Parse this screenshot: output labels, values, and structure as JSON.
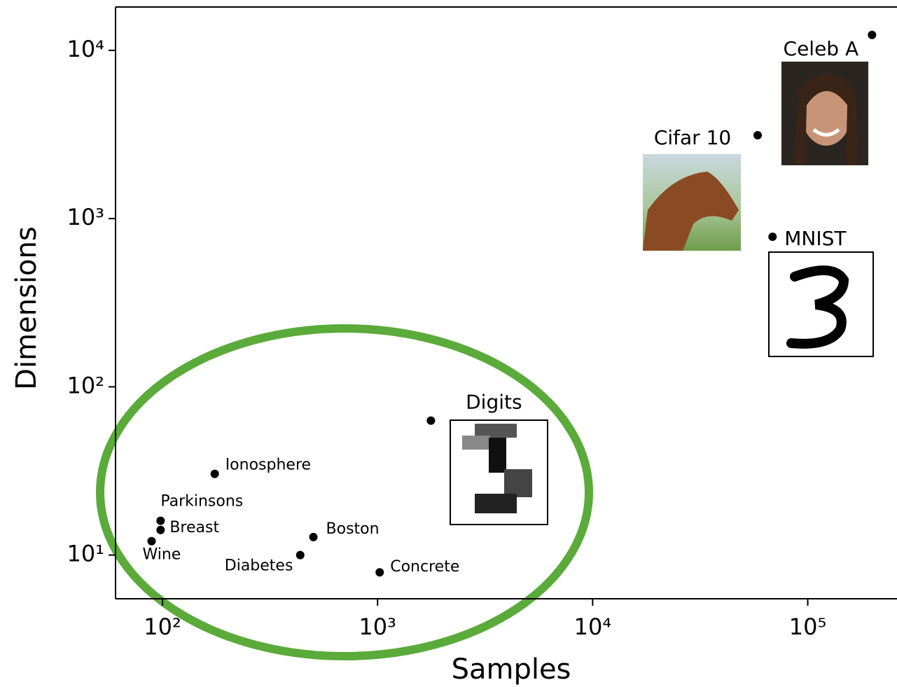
{
  "chart_data": {
    "type": "scatter",
    "xlabel": "Samples",
    "ylabel": "Dimensions",
    "xscale": "log",
    "yscale": "log",
    "xlim": [
      60.5,
      260000
    ],
    "ylim": [
      5.5,
      18100
    ],
    "xticks": [
      {
        "value": 100,
        "label": "10²"
      },
      {
        "value": 1000,
        "label": "10³"
      },
      {
        "value": 10000,
        "label": "10⁴"
      },
      {
        "value": 100000,
        "label": "10⁵"
      }
    ],
    "yticks": [
      {
        "value": 10,
        "label": "10¹"
      },
      {
        "value": 100,
        "label": "10²"
      },
      {
        "value": 1000,
        "label": "10³"
      },
      {
        "value": 10000,
        "label": "10⁴"
      }
    ],
    "series": [
      {
        "color": "#000000",
        "labels": [
          "Wine",
          "Breast",
          "Parkinsons",
          "Ionosphere",
          "Diabetes",
          "Boston",
          "Concrete",
          "Digits",
          "Cifar 10",
          "MNIST",
          "Celeb A"
        ],
        "x": [
          89,
          98,
          98,
          175,
          437,
          503,
          1023,
          1770,
          58500,
          68600,
          199000
        ],
        "values": [
          12.1,
          14.1,
          16,
          30.4,
          10,
          12.8,
          7.9,
          63,
          3130,
          780,
          12350
        ]
      }
    ]
  }
}
